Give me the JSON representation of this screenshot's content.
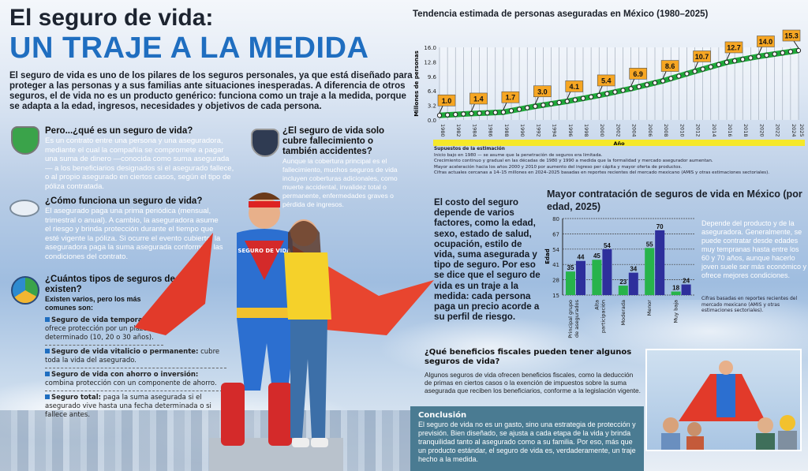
{
  "header": {
    "title_line1": "El seguro de vida:",
    "title_line2": "UN TRAJE A LA MEDIDA"
  },
  "intro": "El seguro de vida es uno de los pilares de los seguros personales, ya que está diseñado para proteger a las personas y a sus familias ante situaciones inesperadas. A diferencia de otros seguros, el de vida no es un producto genérico: funciona como un traje a la medida, porque se adapta a la edad, ingresos, necesidades y objetivos de cada persona.",
  "sections": {
    "que_es": {
      "title": "Pero...¿qué es un seguro de vida?",
      "text": "Es un contrato entre una persona y una aseguradora, mediante el cual la compañía se compromete a pagar una suma de dinero —conocida como suma asegurada— a los beneficiarios designados si el asegurado fallece, o al propio asegurado en ciertos casos, según el tipo de póliza contratada.",
      "icon": "shield-family-icon"
    },
    "cubre": {
      "title": "¿El seguro de vida solo cubre fallecimiento o también accidentes?",
      "text": "Aunque la cobertura principal es el fallecimiento, muchos seguros de vida incluyen coberturas adicionales, como muerte accidental, invalidez total o permanente, enfermedades graves o pérdida de ingresos.",
      "icon": "shield-coverage-icon"
    },
    "funciona": {
      "title": "¿Cómo funciona un seguro de vida?",
      "text": "El asegurado paga una prima periódica (mensual, trimestral o anual). A cambio, la aseguradora asume el riesgo y brinda protección durante el tiempo que esté vigente la póliza. Si ocurre el evento cubierto, la aseguradora paga la suma asegurada conforme a las condiciones del contrato.",
      "icon": "payment-cycle-icon"
    },
    "tipos": {
      "title": "¿Cuántos tipos de seguros de vida existen?",
      "subtitle": "Existen varios, pero los más comunes son:",
      "icon": "types-circle-icon",
      "items": [
        {
          "name": "Seguro de vida temporal:",
          "desc": "ofrece protección por un plazo determinado (10, 20 o 30 años)."
        },
        {
          "name": "Seguro de vida vitalicio o permanente:",
          "desc": "cubre toda la vida del asegurado."
        },
        {
          "name": "Seguro de vida con ahorro o inversión:",
          "desc": "combina protección con un componente de ahorro."
        },
        {
          "name": "Seguro total:",
          "desc": "paga la suma asegurada si el asegurado vive hasta una fecha determinada o si fallece antes."
        }
      ]
    }
  },
  "hero": {
    "chest_text": "SEGURO DE VIDA"
  },
  "cost_text": "El costo del seguro depende de varios factores, como la edad, sexo, estado de salud, ocupación, estilo de vida, suma asegurada y tipo de seguro. Por eso se dice que el seguro de vida es un traje a la medida: cada persona paga un precio acorde a su perfil de riesgo.",
  "fiscal": {
    "title": "¿Qué beneficios fiscales pueden tener algunos seguros de vida?",
    "text": "Algunos seguros de vida ofrecen beneficios fiscales, como la deducción de primas en ciertos casos o la exención de impuestos sobre la suma asegurada que reciben los beneficiarios, conforme a la legislación vigente."
  },
  "conclusion": {
    "title": "Conclusión",
    "text": "El seguro de vida no es un gasto, sino una estrategia de protección y previsión. Bien diseñado, se ajusta a cada etapa de la vida y brinda tranquilidad tanto al asegurado como a su familia. Por eso, más que un producto estándar, el seguro de vida es, verdaderamente, un traje hecho a la medida."
  },
  "line_notes": {
    "title": "Supuestos de la estimación",
    "lines": [
      "Inicio bajo en 1980 — se asume que la penetración de seguros era limitada.",
      "Crecimiento continuo y gradual en las décadas de 1980 y 1990 a medida que la formalidad y mercado asegurador aumentan.",
      "Mayor aceleración hacia los años 2000 y 2010 por aumento del ingreso per cápita y mayor oferta de productos.",
      "Cifras actuales cercanas a 14–15 millones en 2024–2025 basadas en reportes recientes del mercado mexicano (AMIS y otras estimaciones sectoriales)."
    ]
  },
  "bar_side": {
    "note": "Depende del producto y de la aseguradora. Generalmente, se puede contratar desde edades muy tempranas hasta entre los 60 y 70 años, aunque hacerlo joven suele ser más económico y ofrece mejores condiciones.",
    "source": "Cifras basadas en reportes recientes del mercado mexicano (AMIS y otras estimaciones sectoriales)."
  },
  "chart_data": [
    {
      "type": "line",
      "title": "Tendencia estimada de personas aseguradas en México (1980–2025)",
      "xlabel": "Año",
      "ylabel": "Millones de personas",
      "ylim": [
        0,
        16
      ],
      "yticks": [
        0.0,
        3.2,
        6.4,
        9.6,
        12.8,
        16.0
      ],
      "xlim": [
        1980,
        2025
      ],
      "labeled_points": {
        "x": [
          1980,
          1984,
          1988,
          1992,
          1996,
          2000,
          2004,
          2008,
          2012,
          2016,
          2020,
          2025
        ],
        "y": [
          1.0,
          1.4,
          1.7,
          3.0,
          4.1,
          5.4,
          6.9,
          8.6,
          10.7,
          12.7,
          14.0,
          15.3
        ]
      },
      "series_color": "#1fa83a",
      "label_color": "#f6a623",
      "grid": true
    },
    {
      "type": "bar",
      "title": "Mayor contratación de seguros de vida en México (por edad, 2025)",
      "ylabel": "Edad",
      "ylim": [
        15,
        80
      ],
      "yticks": [
        15,
        28,
        41,
        54,
        67,
        80
      ],
      "categories": [
        "Principal grupo de asegurados",
        "Alta participación",
        "Moderada",
        "Menor",
        "Muy baja"
      ],
      "series": [
        {
          "name": "Edad mínima",
          "color": "#27b34b",
          "values": [
            35,
            45,
            23,
            55,
            18
          ]
        },
        {
          "name": "Edad máxima",
          "color": "#2e2f9c",
          "values": [
            44,
            54,
            34,
            70,
            24
          ]
        }
      ]
    }
  ]
}
